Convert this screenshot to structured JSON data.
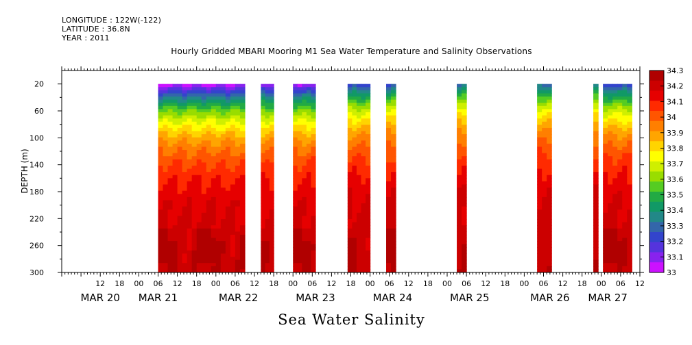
{
  "header": {
    "longitude": "LONGITUDE : 122W(-122)",
    "latitude": "LATITUDE : 36.8N",
    "year": "YEAR : 2011"
  },
  "title": "Hourly Gridded MBARI Mooring M1 Sea Water Temperature and Salinity Observations",
  "bottom_title": "Sea Water Salinity",
  "colors": {
    "levels": [
      "#b00000",
      "#cc0000",
      "#e60000",
      "#ff2a00",
      "#ff5500",
      "#ff7f00",
      "#ffa500",
      "#ffd400",
      "#ffff00",
      "#cfef00",
      "#99dd00",
      "#55cc22",
      "#22aa44",
      "#119966",
      "#228888",
      "#3366aa",
      "#3344cc",
      "#5533dd",
      "#8822ee",
      "#cc11ff"
    ]
  },
  "chart_data": {
    "type": "heatmap",
    "variable": "Sea Water Salinity",
    "ylabel": "DEPTH (m)",
    "y_reversed": true,
    "ylim": [
      0,
      300
    ],
    "y_ticks": [
      20,
      60,
      100,
      140,
      180,
      220,
      260,
      300
    ],
    "x_start_hour": 0,
    "x_end_hour": 180,
    "x_tick_labels": [
      "12",
      "18",
      "00",
      "06",
      "12",
      "18",
      "00",
      "06",
      "12",
      "18",
      "00",
      "06",
      "12",
      "18",
      "00",
      "06",
      "12",
      "18",
      "00",
      "06",
      "12",
      "18",
      "00",
      "06",
      "12",
      "18",
      "00",
      "06",
      "12"
    ],
    "x_tick_hours": [
      12,
      18,
      24,
      30,
      36,
      42,
      48,
      54,
      60,
      66,
      72,
      78,
      84,
      90,
      96,
      102,
      108,
      114,
      120,
      126,
      132,
      138,
      144,
      150,
      156,
      162,
      168,
      174,
      180
    ],
    "day_labels": [
      {
        "label": "MAR 20",
        "hour": 12
      },
      {
        "label": "MAR 21",
        "hour": 30
      },
      {
        "label": "MAR 22",
        "hour": 55
      },
      {
        "label": "MAR 23",
        "hour": 79
      },
      {
        "label": "MAR 24",
        "hour": 103
      },
      {
        "label": "MAR 25",
        "hour": 127
      },
      {
        "label": "MAR 26",
        "hour": 152
      },
      {
        "label": "MAR 27",
        "hour": 170
      }
    ],
    "data_segments": [
      {
        "start_hour": 30,
        "end_hour": 57,
        "surface": 33.02
      },
      {
        "start_hour": 62,
        "end_hour": 66,
        "surface": 33.05
      },
      {
        "start_hour": 72,
        "end_hour": 79,
        "surface": 33.05
      },
      {
        "start_hour": 89,
        "end_hour": 96,
        "surface": 33.2
      },
      {
        "start_hour": 101,
        "end_hour": 104,
        "surface": 33.25
      },
      {
        "start_hour": 123,
        "end_hour": 126,
        "surface": 33.3
      },
      {
        "start_hour": 148,
        "end_hour": 152.5,
        "surface": 33.3
      },
      {
        "start_hour": 165.5,
        "end_hour": 167,
        "surface": 33.3
      },
      {
        "start_hour": 168.5,
        "end_hour": 177.5,
        "surface": 33.2
      }
    ],
    "colorbar": {
      "min": 33,
      "max": 34.3,
      "labels": [
        "34.3",
        "34.2",
        "34.1",
        "34",
        "33.9",
        "33.8",
        "33.7",
        "33.6",
        "33.5",
        "33.4",
        "33.3",
        "33.2",
        "33.1",
        "33"
      ]
    }
  }
}
